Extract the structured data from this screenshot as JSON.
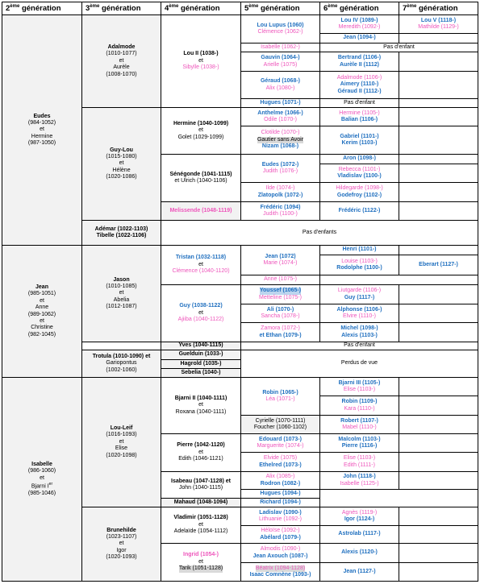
{
  "headers": [
    {
      "num": "2",
      "sup": "ème",
      "label": " génération"
    },
    {
      "num": "3",
      "sup": "ème",
      "label": " génération"
    },
    {
      "num": "4",
      "sup": "ème",
      "label": " génération"
    },
    {
      "num": "5",
      "sup": "ème",
      "label": " génération"
    },
    {
      "num": "6",
      "sup": "ème",
      "label": " génération"
    },
    {
      "num": "7",
      "sup": "ème",
      "label": " génération"
    }
  ],
  "cells": [
    {
      "id": "g2-eudes",
      "lines": [
        {
          "t": "Eudes",
          "c": "bold"
        },
        {
          "t": "(984-1052)"
        },
        {
          "t": " "
        },
        {
          "t": " "
        },
        {
          "t": "et"
        },
        {
          "t": " "
        },
        {
          "t": "Hermine"
        },
        {
          "t": "(987-1050)"
        }
      ],
      "bg": "gray"
    },
    {
      "id": "g2-jean",
      "lines": [
        {
          "t": "Jean",
          "c": "bold"
        },
        {
          "t": "(985-1051)"
        },
        {
          "t": "et"
        },
        {
          "t": "Anne"
        },
        {
          "t": "(989-1062)"
        },
        {
          "t": " "
        },
        {
          "t": " "
        },
        {
          "t": "et"
        },
        {
          "t": "Christine"
        },
        {
          "t": "(982-1045)"
        }
      ],
      "bg": "gray"
    },
    {
      "id": "g2-isabelle",
      "lines": [
        {
          "t": "Isabelle",
          "c": "bold"
        },
        {
          "t": "(986-1060)"
        },
        {
          "t": "et"
        },
        {
          "t": "Bjarni I",
          "sup": "er"
        },
        {
          "t": "(985-1046)"
        }
      ],
      "bg": "gray"
    },
    {
      "id": "g3-adalmode",
      "lines": [
        {
          "t": "Adalmode",
          "c": "bold"
        },
        {
          "t": "(1010-1077)"
        },
        {
          "t": "et"
        },
        {
          "t": "Aurèle"
        },
        {
          "t": "(1008-1070)"
        }
      ],
      "bg": "gray"
    },
    {
      "id": "g3-guylou",
      "lines": [
        {
          "t": "Guy-Lou",
          "c": "bold"
        },
        {
          "t": "(1015-1080)"
        },
        {
          "t": "et"
        },
        {
          "t": "Hélène"
        },
        {
          "t": "(1020-1086)"
        }
      ],
      "bg": "gray"
    },
    {
      "id": "g3-ademar",
      "lines": [
        {
          "t": "Adémar (1022-1103)",
          "c": "bold"
        },
        {
          "t": "Tibelle (1022-1106)",
          "c": "bold"
        }
      ],
      "bg": "gray"
    },
    {
      "id": "g3-jason",
      "lines": [
        {
          "t": "Jason",
          "c": "bold"
        },
        {
          "t": "(1010-1085)"
        },
        {
          "t": "et"
        },
        {
          "t": "Abelia"
        },
        {
          "t": "(1012-1087)"
        }
      ],
      "bg": "gray"
    },
    {
      "id": "g3-trotula",
      "lines": [
        {
          "t": "Trotula (1010-1090) et",
          "c": "bold"
        },
        {
          "t": "Gariopontus"
        },
        {
          "t": "(1002-1060)"
        }
      ],
      "bg": "gray"
    },
    {
      "id": "g3-louleif",
      "lines": [
        {
          "t": "Lou-Leif",
          "c": "bold"
        },
        {
          "t": "(1016-1093)"
        },
        {
          "t": "et"
        },
        {
          "t": "Elise"
        },
        {
          "t": "(1020-1098)"
        }
      ],
      "bg": "gray"
    },
    {
      "id": "g3-brunehilde",
      "lines": [
        {
          "t": "Brunehilde",
          "c": "bold"
        },
        {
          "t": "(1023-1107)"
        },
        {
          "t": "et"
        },
        {
          "t": "Igor"
        },
        {
          "t": "(1020-1093)"
        }
      ],
      "bg": "gray"
    },
    {
      "id": "g4-lou2",
      "lines": [
        {
          "t": "Lou II (1038-)",
          "c": "bold"
        },
        {
          "t": "et"
        },
        {
          "t": "Sibylle (1038-)",
          "c": "p"
        }
      ]
    },
    {
      "id": "g4-hermine",
      "lines": [
        {
          "t": "Hermine (1040-1099)",
          "c": "bold"
        },
        {
          "t": "et"
        },
        {
          "t": "Golet (1029-1099)"
        }
      ]
    },
    {
      "id": "g4-senegonde",
      "lines": [
        {
          "t": "Sénégonde (1041-1115)",
          "c": "bold"
        },
        {
          "t": "et Ulrich (1040-1106)"
        }
      ]
    },
    {
      "id": "g4-melissende",
      "lines": [
        {
          "t": "Melissende (1048-1119)",
          "c": "p bold"
        }
      ],
      "bg": "gray"
    },
    {
      "id": "g4-tristan",
      "lines": [
        {
          "t": "Tristan (1032-1118)",
          "c": "b"
        },
        {
          "t": "et"
        },
        {
          "t": "Clémence (1040-1120)",
          "c": "p"
        }
      ]
    },
    {
      "id": "g4-guy",
      "lines": [
        {
          "t": "Guy (1038-1122)",
          "c": "b"
        },
        {
          "t": "et"
        },
        {
          "t": "Ajiiba (1040-1122)",
          "c": "p"
        }
      ]
    },
    {
      "id": "g4-yves",
      "lines": [
        {
          "t": "Yves (1040-1115)",
          "c": "bold"
        }
      ],
      "bg": "gray"
    },
    {
      "id": "g4-guelduin",
      "lines": [
        {
          "t": "Guelduin (1033-)",
          "c": "bold"
        }
      ],
      "bg": "gray"
    },
    {
      "id": "g4-hagrold",
      "lines": [
        {
          "t": "Hagrold (1035-)",
          "c": "bold"
        }
      ],
      "bg": "gray"
    },
    {
      "id": "g4-sebelia",
      "lines": [
        {
          "t": "Sebelia (1040-)",
          "c": "bold"
        }
      ],
      "bg": "gray"
    },
    {
      "id": "g4-bjarni2",
      "lines": [
        {
          "t": "Bjarni II (1040-1111)",
          "c": "bold"
        },
        {
          "t": "et"
        },
        {
          "t": "Roxana (1040-1111)"
        }
      ]
    },
    {
      "id": "g4-pierre",
      "lines": [
        {
          "t": "Pierre (1042-1120)",
          "c": "bold"
        },
        {
          "t": "et"
        },
        {
          "t": "Edith (1046-1121)"
        }
      ]
    },
    {
      "id": "g4-isabeau",
      "lines": [
        {
          "t": "Isabeau (1047-1128) et",
          "c": "bold"
        },
        {
          "t": "John (1040-1115)"
        }
      ]
    },
    {
      "id": "g4-mahaud",
      "lines": [
        {
          "t": "Mahaud (1048-1094)",
          "c": "bold"
        }
      ],
      "bg": "gray"
    },
    {
      "id": "g4-vladimir",
      "lines": [
        {
          "t": "Vladimir (1051-1128)",
          "c": "bold"
        },
        {
          "t": "et"
        },
        {
          "t": "Adelaïde (1054-1112)"
        }
      ]
    },
    {
      "id": "g4-ingrid",
      "lines": [
        {
          "t": "Ingrid (1054-)",
          "c": "p bold"
        },
        {
          "t": "et"
        },
        {
          "t": "Tarik (1051-1128)",
          "c": "hl"
        }
      ]
    },
    {
      "id": "g5-loulupus",
      "lines": [
        {
          "t": "Lou Lupus (1060)",
          "c": "b"
        },
        {
          "t": "Clémence (1062-)",
          "c": "p"
        }
      ]
    },
    {
      "id": "g5-isabelle",
      "lines": [
        {
          "t": "Isabelle (1062-)",
          "c": "p"
        }
      ]
    },
    {
      "id": "g5-gauvin",
      "lines": [
        {
          "t": "Gauvin (1064-)",
          "c": "b"
        },
        {
          "t": "Arielle (1075)",
          "c": "p"
        }
      ]
    },
    {
      "id": "g5-gerauld",
      "lines": [
        {
          "t": "Géraud (1068-)",
          "c": "b"
        },
        {
          "t": "Alix (1080-)",
          "c": "p"
        }
      ]
    },
    {
      "id": "g5-hugues1",
      "lines": [
        {
          "t": "Hugues (1071-)",
          "c": "b"
        }
      ]
    },
    {
      "id": "g5-antheime",
      "lines": [
        {
          "t": "Anthelme (1066-)",
          "c": "b"
        },
        {
          "t": "Odile (1070-)",
          "c": "p"
        }
      ]
    },
    {
      "id": "g5-clotilde",
      "lines": [
        {
          "t": "Clotilde (1070-)",
          "c": "p"
        },
        {
          "t": "Gautier sans Avoir",
          "c": "hl"
        },
        {
          "t": "Nizam (1068-)",
          "c": "b"
        }
      ]
    },
    {
      "id": "g5-eudes",
      "lines": [
        {
          "t": "Eudes (1072-)",
          "c": "b"
        },
        {
          "t": "Judith (1076-)",
          "c": "p"
        }
      ]
    },
    {
      "id": "g5-ilde",
      "lines": [
        {
          "t": "Ilde (1074-)",
          "c": "p"
        },
        {
          "t": "Zlatopolk (1072-)",
          "c": "b"
        }
      ]
    },
    {
      "id": "g5-frederic",
      "lines": [
        {
          "t": "Frédéric (1094)",
          "c": "b"
        },
        {
          "t": "Judith (1100-)",
          "c": "p"
        }
      ]
    },
    {
      "id": "g5-jean",
      "lines": [
        {
          "t": "Jean (1072)",
          "c": "b"
        },
        {
          "t": "Marie (1074-)",
          "c": "p"
        }
      ]
    },
    {
      "id": "g5-anne",
      "lines": [
        {
          "t": "Anne (1075-)",
          "c": "p"
        }
      ]
    },
    {
      "id": "g5-youssef",
      "lines": [
        {
          "t": "Youssef (1065-)",
          "c": "b hlb"
        },
        {
          "t": "Metteline (1075-)",
          "c": "p"
        }
      ]
    },
    {
      "id": "g5-ali",
      "lines": [
        {
          "t": "Ali (1070-)",
          "c": "b"
        },
        {
          "t": "Sancha (1078-)",
          "c": "p"
        }
      ]
    },
    {
      "id": "g5-zamora",
      "lines": [
        {
          "t": "Zamora (1072-)",
          "c": "p"
        },
        {
          "t": "et Ethan (1079-)",
          "c": "b"
        }
      ]
    },
    {
      "id": "g5-robin",
      "lines": [
        {
          "t": "Robin (1065-)",
          "c": "b"
        },
        {
          "t": "Léa (1071-)",
          "c": "p"
        }
      ]
    },
    {
      "id": "g5-cyrielle",
      "lines": [
        {
          "t": "Cyrielle (1070-1111)"
        },
        {
          "t": "Foucher (1060-1102)"
        }
      ],
      "bg": "gray"
    },
    {
      "id": "g5-edouard",
      "lines": [
        {
          "t": "Edouard (1073-)",
          "c": "b"
        },
        {
          "t": "Marguerite (1074-)",
          "c": "p"
        }
      ]
    },
    {
      "id": "g5-elvide",
      "lines": [
        {
          "t": "Elvide (1075)",
          "c": "p"
        },
        {
          "t": "Ethelred (1073-)",
          "c": "b"
        }
      ]
    },
    {
      "id": "g5-alix",
      "lines": [
        {
          "t": "Alix (1085-)",
          "c": "p"
        },
        {
          "t": "Rodron (1082-)",
          "c": "b"
        }
      ]
    },
    {
      "id": "g5-hugues2",
      "lines": [
        {
          "t": "Hugues (1094-)",
          "c": "b"
        }
      ]
    },
    {
      "id": "g5-richard",
      "lines": [
        {
          "t": "Richard (1094-)",
          "c": "b"
        }
      ]
    },
    {
      "id": "g5-ladislav",
      "lines": [
        {
          "t": "Ladislav (1090-)",
          "c": "b"
        },
        {
          "t": "Lithuanie (1092-)",
          "c": "p"
        }
      ]
    },
    {
      "id": "g5-heloise",
      "lines": [
        {
          "t": "Héloïse (1092-)",
          "c": "p"
        },
        {
          "t": "Abélard (1079-)",
          "c": "b"
        }
      ]
    },
    {
      "id": "g5-almodis",
      "lines": [
        {
          "t": "Almodis (1090-)",
          "c": "p"
        },
        {
          "t": "Jean Axouch (1087-)",
          "c": "b"
        }
      ]
    },
    {
      "id": "g5-beatrix",
      "lines": [
        {
          "t": "Béatrix (1094-1128)",
          "c": "p hl"
        },
        {
          "t": "Isaac Comnène (1093-)",
          "c": "b"
        }
      ]
    },
    {
      "id": "g6-lou4",
      "lines": [
        {
          "t": "Lou IV (1089-)",
          "c": "b"
        },
        {
          "t": "Meredith (1092-)",
          "c": "p"
        }
      ]
    },
    {
      "id": "g6-jean",
      "lines": [
        {
          "t": "Jean (1094-)",
          "c": "b"
        }
      ]
    },
    {
      "id": "g6-bertrand",
      "lines": [
        {
          "t": "Bertrand (1106-)",
          "c": "b"
        },
        {
          "t": "Aurèle II (1112)",
          "c": "b"
        }
      ]
    },
    {
      "id": "g6-adalmode",
      "lines": [
        {
          "t": "Adalmode (1106-)",
          "c": "p"
        },
        {
          "t": "Aimery (1110-)",
          "c": "b"
        },
        {
          "t": "Géraud II (1112-)",
          "c": "b"
        }
      ]
    },
    {
      "id": "g6-hermine",
      "lines": [
        {
          "t": "Hermine (1105-)",
          "c": "p"
        },
        {
          "t": "Balian (1106-)",
          "c": "b"
        }
      ]
    },
    {
      "id": "g6-gabriel",
      "lines": [
        {
          "t": "Gabriel (1101-)",
          "c": "b"
        },
        {
          "t": "Kerim (1103-)",
          "c": "b"
        }
      ]
    },
    {
      "id": "g6-aron",
      "lines": [
        {
          "t": "Aron (1098-)",
          "c": "b"
        }
      ]
    },
    {
      "id": "g6-rebecca",
      "lines": [
        {
          "t": "Rebecca (1101-)",
          "c": "p"
        },
        {
          "t": "Vladislav (1100-)",
          "c": "b"
        }
      ]
    },
    {
      "id": "g6-hildegarde",
      "lines": [
        {
          "t": "Hildegarde (1098-)",
          "c": "p"
        },
        {
          "t": "Godefroy (1102-)",
          "c": "b"
        }
      ]
    },
    {
      "id": "g6-frederic",
      "lines": [
        {
          "t": "Frédéric (1122-)",
          "c": "b"
        }
      ]
    },
    {
      "id": "g6-henri",
      "lines": [
        {
          "t": "Henri (1101-)",
          "c": "b"
        }
      ]
    },
    {
      "id": "g6-louise",
      "lines": [
        {
          "t": "Louise (1103-)",
          "c": "p"
        },
        {
          "t": "Rodolphe (1100-)",
          "c": "b"
        }
      ]
    },
    {
      "id": "g6-liutgarde",
      "lines": [
        {
          "t": "Liutgarde (1106-)",
          "c": "p"
        },
        {
          "t": "Guy (1117-)",
          "c": "b"
        }
      ]
    },
    {
      "id": "g6-alphonse",
      "lines": [
        {
          "t": "Alphonse (1106-)",
          "c": "b"
        },
        {
          "t": "Elvire (1110-)",
          "c": "p"
        }
      ]
    },
    {
      "id": "g6-michel",
      "lines": [
        {
          "t": "Michel (1098-)",
          "c": "b"
        },
        {
          "t": "Alexis (1103-)",
          "c": "b"
        }
      ]
    },
    {
      "id": "g6-bjarni3",
      "lines": [
        {
          "t": "Bjarni III (1105-)",
          "c": "b"
        },
        {
          "t": "Elise (1103-)",
          "c": "p"
        }
      ]
    },
    {
      "id": "g6-robin",
      "lines": [
        {
          "t": "Robin (1109-)",
          "c": "b"
        },
        {
          "t": "Kara (1110-)",
          "c": "p"
        }
      ]
    },
    {
      "id": "g6-robert",
      "lines": [
        {
          "t": "Robert (1107-)",
          "c": "b"
        },
        {
          "t": "Mabel (1110-)",
          "c": "p"
        }
      ]
    },
    {
      "id": "g6-malcolm",
      "lines": [
        {
          "t": "Malcolm (1103-)",
          "c": "b"
        },
        {
          "t": "Pierre (1116-)",
          "c": "b"
        }
      ]
    },
    {
      "id": "g6-elise",
      "lines": [
        {
          "t": "Elise (1103-)",
          "c": "p"
        },
        {
          "t": "Edith (1111-)",
          "c": "p"
        }
      ]
    },
    {
      "id": "g6-john",
      "lines": [
        {
          "t": "John (1118-)",
          "c": "b"
        },
        {
          "t": "Isabelle (1125-)",
          "c": "p"
        }
      ]
    },
    {
      "id": "g6-agnes",
      "lines": [
        {
          "t": "Agnès (1119-)",
          "c": "p"
        },
        {
          "t": "Igor (1124-)",
          "c": "b"
        }
      ]
    },
    {
      "id": "g6-astrolab",
      "lines": [
        {
          "t": "Astrolab (1117-)",
          "c": "b"
        }
      ]
    },
    {
      "id": "g6-alexis",
      "lines": [
        {
          "t": "Alexis (1120-)",
          "c": "b"
        }
      ]
    },
    {
      "id": "g6-jean2",
      "lines": [
        {
          "t": "Jean (1127-)",
          "c": "b"
        }
      ]
    },
    {
      "id": "g7-lou5",
      "lines": [
        {
          "t": "Lou V (1118-)",
          "c": "b"
        },
        {
          "t": "Mathilde (1129-)",
          "c": "p"
        }
      ]
    },
    {
      "id": "g7-eberart",
      "lines": [
        {
          "t": "Eberart (1127-)",
          "c": "b"
        }
      ]
    },
    {
      "id": "note-pas-enfant-1",
      "lines": [
        {
          "t": "Pas d'enfant"
        }
      ]
    },
    {
      "id": "note-pas-enfant-2",
      "lines": [
        {
          "t": "Pas d'enfant"
        }
      ]
    },
    {
      "id": "note-pas-enfants",
      "lines": [
        {
          "t": "Pas d'enfants"
        }
      ]
    },
    {
      "id": "note-pas-enfant-3",
      "lines": [
        {
          "t": "Pas d'enfant"
        }
      ]
    },
    {
      "id": "note-perdus",
      "lines": [
        {
          "t": "Perdus de vue"
        }
      ]
    }
  ]
}
